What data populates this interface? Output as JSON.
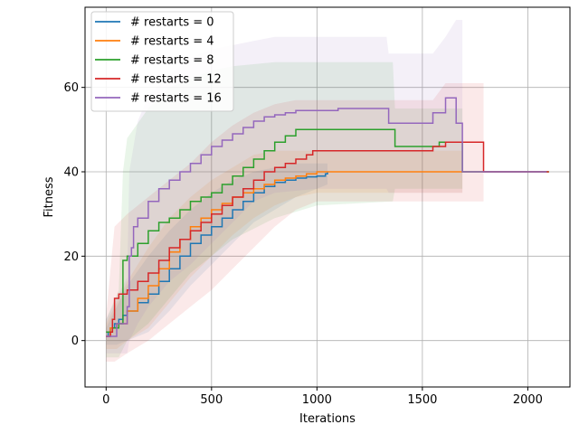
{
  "chart_data": {
    "type": "line",
    "title": "",
    "xlabel": "Iterations",
    "ylabel": "Fitness",
    "xlim": [
      -100,
      2200
    ],
    "ylim": [
      -11,
      79
    ],
    "xticks": [
      0,
      500,
      1000,
      1500,
      2000
    ],
    "yticks": [
      0,
      20,
      40,
      60
    ],
    "xtick_labels": [
      "0",
      "500",
      "1000",
      "1500",
      "2000"
    ],
    "ytick_labels": [
      "0",
      "20",
      "40",
      "60"
    ],
    "grid": true,
    "legend_position": "upper-left",
    "series": [
      {
        "name": "# restarts = 0",
        "color": "#1f77b4",
        "points": [
          [
            0,
            1
          ],
          [
            10,
            2
          ],
          [
            20,
            3
          ],
          [
            40,
            4
          ],
          [
            60,
            5
          ],
          [
            80,
            6
          ],
          [
            100,
            7
          ],
          [
            150,
            9
          ],
          [
            200,
            11
          ],
          [
            250,
            14
          ],
          [
            300,
            17
          ],
          [
            350,
            20
          ],
          [
            400,
            23
          ],
          [
            450,
            25
          ],
          [
            500,
            27
          ],
          [
            550,
            29
          ],
          [
            600,
            31
          ],
          [
            650,
            33
          ],
          [
            700,
            35
          ],
          [
            750,
            36.5
          ],
          [
            800,
            37.5
          ],
          [
            850,
            38
          ],
          [
            900,
            38.5
          ],
          [
            950,
            38.8
          ],
          [
            1000,
            39
          ],
          [
            1040,
            39.5
          ],
          [
            1050,
            40
          ]
        ],
        "band_upper": [
          [
            0,
            3
          ],
          [
            50,
            8
          ],
          [
            100,
            13
          ],
          [
            200,
            20
          ],
          [
            300,
            26
          ],
          [
            400,
            31
          ],
          [
            500,
            35
          ],
          [
            600,
            38
          ],
          [
            700,
            40
          ],
          [
            800,
            41
          ],
          [
            900,
            42
          ],
          [
            1000,
            42
          ],
          [
            1050,
            42
          ]
        ],
        "band_lower": [
          [
            0,
            -1
          ],
          [
            50,
            -1
          ],
          [
            100,
            0
          ],
          [
            200,
            2
          ],
          [
            300,
            7
          ],
          [
            400,
            13
          ],
          [
            500,
            18
          ],
          [
            600,
            23
          ],
          [
            700,
            28
          ],
          [
            800,
            31
          ],
          [
            900,
            34
          ],
          [
            1000,
            36
          ],
          [
            1050,
            37
          ]
        ]
      },
      {
        "name": "# restarts = 4",
        "color": "#ff7f0e",
        "points": [
          [
            0,
            1
          ],
          [
            20,
            3
          ],
          [
            50,
            4
          ],
          [
            100,
            7
          ],
          [
            150,
            10
          ],
          [
            200,
            13
          ],
          [
            250,
            17
          ],
          [
            300,
            21
          ],
          [
            350,
            24
          ],
          [
            400,
            27
          ],
          [
            450,
            29
          ],
          [
            500,
            31
          ],
          [
            550,
            32.5
          ],
          [
            600,
            34
          ],
          [
            650,
            35
          ],
          [
            700,
            36
          ],
          [
            750,
            37
          ],
          [
            800,
            38
          ],
          [
            850,
            38.5
          ],
          [
            900,
            39
          ],
          [
            950,
            39.5
          ],
          [
            1000,
            40
          ],
          [
            1500,
            40
          ],
          [
            2000,
            40
          ],
          [
            2100,
            40
          ]
        ],
        "band_upper": [
          [
            0,
            4
          ],
          [
            50,
            9
          ],
          [
            100,
            14
          ],
          [
            200,
            22
          ],
          [
            300,
            29
          ],
          [
            400,
            34
          ],
          [
            500,
            38
          ],
          [
            600,
            41
          ],
          [
            700,
            44
          ],
          [
            800,
            45
          ],
          [
            900,
            45
          ],
          [
            1000,
            45
          ],
          [
            1500,
            45
          ],
          [
            1690,
            45
          ]
        ],
        "band_lower": [
          [
            0,
            -2
          ],
          [
            50,
            -2
          ],
          [
            100,
            0
          ],
          [
            200,
            3
          ],
          [
            300,
            9
          ],
          [
            400,
            15
          ],
          [
            500,
            20
          ],
          [
            600,
            25
          ],
          [
            700,
            29
          ],
          [
            800,
            32
          ],
          [
            900,
            34
          ],
          [
            1000,
            35
          ],
          [
            1500,
            35
          ],
          [
            1690,
            35
          ]
        ]
      },
      {
        "name": "# restarts = 8",
        "color": "#2ca02c",
        "points": [
          [
            0,
            2
          ],
          [
            30,
            3
          ],
          [
            60,
            4
          ],
          [
            80,
            19
          ],
          [
            100,
            20
          ],
          [
            150,
            23
          ],
          [
            200,
            26
          ],
          [
            250,
            28
          ],
          [
            300,
            29
          ],
          [
            350,
            31
          ],
          [
            400,
            33
          ],
          [
            450,
            34
          ],
          [
            500,
            35
          ],
          [
            550,
            37
          ],
          [
            600,
            39
          ],
          [
            650,
            41
          ],
          [
            700,
            43
          ],
          [
            750,
            45
          ],
          [
            800,
            47
          ],
          [
            850,
            48.5
          ],
          [
            900,
            50
          ],
          [
            1000,
            50
          ],
          [
            1360,
            50
          ],
          [
            1370,
            46
          ],
          [
            1500,
            46
          ],
          [
            1550,
            46
          ],
          [
            1580,
            47
          ],
          [
            1680,
            47
          ],
          [
            1690,
            40
          ],
          [
            2000,
            40
          ],
          [
            2100,
            40
          ]
        ],
        "band_upper": [
          [
            0,
            5
          ],
          [
            60,
            12
          ],
          [
            80,
            40
          ],
          [
            100,
            48
          ],
          [
            200,
            55
          ],
          [
            300,
            60
          ],
          [
            400,
            62
          ],
          [
            500,
            64
          ],
          [
            600,
            65
          ],
          [
            800,
            66
          ],
          [
            1000,
            66
          ],
          [
            1360,
            66
          ],
          [
            1370,
            55
          ],
          [
            1500,
            55
          ],
          [
            1690,
            55
          ]
        ],
        "band_lower": [
          [
            0,
            -4
          ],
          [
            60,
            -4
          ],
          [
            80,
            -2
          ],
          [
            100,
            0
          ],
          [
            200,
            4
          ],
          [
            300,
            10
          ],
          [
            400,
            16
          ],
          [
            500,
            20
          ],
          [
            600,
            24
          ],
          [
            800,
            29
          ],
          [
            1000,
            32
          ],
          [
            1360,
            33
          ],
          [
            1370,
            36
          ],
          [
            1500,
            36
          ],
          [
            1690,
            36
          ]
        ]
      },
      {
        "name": "# restarts = 12",
        "color": "#d62728",
        "points": [
          [
            0,
            1
          ],
          [
            20,
            2
          ],
          [
            30,
            5
          ],
          [
            40,
            10
          ],
          [
            60,
            11
          ],
          [
            100,
            12
          ],
          [
            150,
            14
          ],
          [
            200,
            16
          ],
          [
            250,
            19
          ],
          [
            300,
            22
          ],
          [
            350,
            24
          ],
          [
            400,
            26
          ],
          [
            450,
            28
          ],
          [
            500,
            30
          ],
          [
            550,
            32
          ],
          [
            600,
            34
          ],
          [
            650,
            36
          ],
          [
            700,
            38
          ],
          [
            750,
            40
          ],
          [
            800,
            41
          ],
          [
            850,
            42
          ],
          [
            900,
            43
          ],
          [
            950,
            44
          ],
          [
            980,
            45
          ],
          [
            1000,
            45
          ],
          [
            1540,
            45
          ],
          [
            1550,
            46
          ],
          [
            1600,
            46
          ],
          [
            1610,
            47
          ],
          [
            1780,
            47
          ],
          [
            1790,
            40
          ],
          [
            2000,
            40
          ],
          [
            2100,
            40
          ]
        ],
        "band_upper": [
          [
            0,
            6
          ],
          [
            40,
            27
          ],
          [
            100,
            30
          ],
          [
            200,
            34
          ],
          [
            300,
            38
          ],
          [
            400,
            42
          ],
          [
            500,
            47
          ],
          [
            600,
            51
          ],
          [
            700,
            54
          ],
          [
            800,
            56
          ],
          [
            900,
            57
          ],
          [
            1000,
            57
          ],
          [
            1550,
            57
          ],
          [
            1610,
            61
          ],
          [
            1790,
            61
          ]
        ],
        "band_lower": [
          [
            0,
            -5
          ],
          [
            40,
            -5
          ],
          [
            100,
            -3
          ],
          [
            200,
            0
          ],
          [
            300,
            4
          ],
          [
            400,
            8
          ],
          [
            500,
            12
          ],
          [
            600,
            17
          ],
          [
            700,
            22
          ],
          [
            800,
            27
          ],
          [
            900,
            31
          ],
          [
            1000,
            33
          ],
          [
            1550,
            33
          ],
          [
            1610,
            33
          ],
          [
            1790,
            33
          ]
        ]
      },
      {
        "name": "# restarts = 16",
        "color": "#9467bd",
        "points": [
          [
            0,
            1
          ],
          [
            50,
            4
          ],
          [
            100,
            8
          ],
          [
            110,
            20
          ],
          [
            120,
            22
          ],
          [
            130,
            27
          ],
          [
            150,
            29
          ],
          [
            200,
            33
          ],
          [
            250,
            36
          ],
          [
            300,
            38
          ],
          [
            350,
            40
          ],
          [
            400,
            42
          ],
          [
            450,
            44
          ],
          [
            500,
            46
          ],
          [
            550,
            47.5
          ],
          [
            600,
            49
          ],
          [
            650,
            50.5
          ],
          [
            700,
            52
          ],
          [
            750,
            53
          ],
          [
            800,
            53.5
          ],
          [
            850,
            54
          ],
          [
            900,
            54.5
          ],
          [
            1000,
            54.5
          ],
          [
            1100,
            55
          ],
          [
            1330,
            55
          ],
          [
            1340,
            51.5
          ],
          [
            1500,
            51.5
          ],
          [
            1550,
            54
          ],
          [
            1600,
            54
          ],
          [
            1610,
            57.5
          ],
          [
            1650,
            57.5
          ],
          [
            1660,
            51.5
          ],
          [
            1680,
            51.5
          ],
          [
            1690,
            40
          ],
          [
            1700,
            40
          ],
          [
            2000,
            40
          ],
          [
            2090,
            40
          ]
        ],
        "band_upper": [
          [
            0,
            5
          ],
          [
            100,
            15
          ],
          [
            110,
            40
          ],
          [
            150,
            52
          ],
          [
            200,
            58
          ],
          [
            300,
            63
          ],
          [
            400,
            67
          ],
          [
            500,
            69
          ],
          [
            600,
            70
          ],
          [
            700,
            71
          ],
          [
            800,
            72
          ],
          [
            1000,
            72
          ],
          [
            1330,
            72
          ],
          [
            1340,
            68
          ],
          [
            1500,
            68
          ],
          [
            1550,
            68
          ],
          [
            1610,
            72
          ],
          [
            1660,
            76
          ],
          [
            1690,
            76
          ]
        ],
        "band_lower": [
          [
            0,
            -3
          ],
          [
            100,
            -3
          ],
          [
            110,
            0
          ],
          [
            150,
            4
          ],
          [
            200,
            8
          ],
          [
            300,
            14
          ],
          [
            400,
            18
          ],
          [
            500,
            23
          ],
          [
            600,
            28
          ],
          [
            700,
            33
          ],
          [
            800,
            35
          ],
          [
            1000,
            36
          ],
          [
            1330,
            36
          ],
          [
            1340,
            35
          ],
          [
            1500,
            35
          ],
          [
            1690,
            35
          ]
        ]
      }
    ]
  }
}
